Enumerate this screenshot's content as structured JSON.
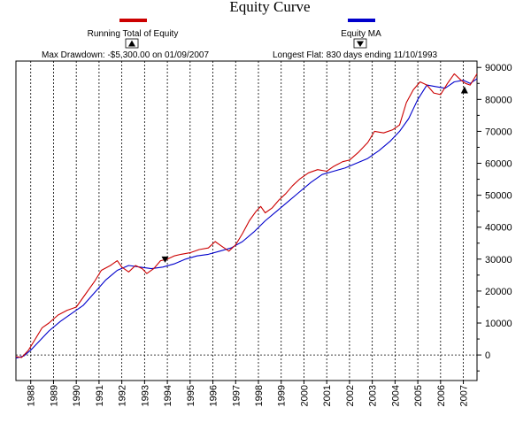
{
  "chart_data": {
    "type": "line",
    "title": "Equity Curve",
    "legend": [
      {
        "name": "Running Total of Equity",
        "color": "#cc0000"
      },
      {
        "name": "Equity MA",
        "color": "#0000cc"
      }
    ],
    "annotations": {
      "max_drawdown": "Max Drawdown: -$5,300.00 on 01/09/2007",
      "longest_flat": "Longest Flat: 830 days ending 11/10/1993"
    },
    "y_ticks": [
      "90000",
      "80000",
      "70000",
      "60000",
      "50000",
      "40000",
      "30000",
      "20000",
      "10000",
      "0"
    ],
    "x_ticks": [
      "1988",
      "1989",
      "1990",
      "1991",
      "1992",
      "1993",
      "1994",
      "1995",
      "1996",
      "1997",
      "1998",
      "1999",
      "2000",
      "2001",
      "2002",
      "2003",
      "2004",
      "2005",
      "2006",
      "2007"
    ],
    "xlim": [
      1987.35,
      2007.6
    ],
    "ylim": [
      -8000,
      92000
    ],
    "markers": [
      {
        "kind": "down-triangle",
        "x": 1993.9,
        "y": 30000
      },
      {
        "kind": "up-triangle",
        "x": 2007.05,
        "y": 83000
      }
    ],
    "series": [
      {
        "name": "Running Total of Equity",
        "color": "#cc0000",
        "x": [
          1987.35,
          1987.6,
          1987.9,
          1988.2,
          1988.5,
          1988.8,
          1989.2,
          1989.6,
          1990.0,
          1990.4,
          1990.8,
          1991.1,
          1991.5,
          1991.8,
          1992.0,
          1992.3,
          1992.6,
          1992.9,
          1993.1,
          1993.4,
          1993.7,
          1994.0,
          1994.3,
          1994.6,
          1995.0,
          1995.4,
          1995.8,
          1996.1,
          1996.4,
          1996.7,
          1997.0,
          1997.3,
          1997.6,
          1997.9,
          1998.1,
          1998.3,
          1998.6,
          1998.9,
          1999.2,
          1999.5,
          1999.8,
          2000.2,
          2000.6,
          2001.0,
          2001.3,
          2001.7,
          2002.0,
          2002.4,
          2002.8,
          2003.1,
          2003.5,
          2003.9,
          2004.2,
          2004.5,
          2004.8,
          2005.1,
          2005.4,
          2005.7,
          2006.0,
          2006.3,
          2006.6,
          2006.9,
          2007.1,
          2007.3,
          2007.6
        ],
        "y": [
          -500,
          -800,
          1500,
          5000,
          8500,
          10000,
          12500,
          14000,
          15000,
          19000,
          23000,
          26500,
          28000,
          29500,
          27500,
          26000,
          28000,
          27000,
          25500,
          27000,
          29500,
          30000,
          31000,
          31500,
          32000,
          33000,
          33500,
          35500,
          34000,
          32500,
          34500,
          38000,
          42000,
          45000,
          46500,
          44500,
          46000,
          48500,
          50500,
          53000,
          55000,
          57000,
          58000,
          57500,
          59000,
          60500,
          61000,
          63500,
          66500,
          70000,
          69500,
          70500,
          72000,
          79000,
          83000,
          85500,
          84500,
          82000,
          81500,
          85000,
          88000,
          86000,
          85000,
          84500,
          88000
        ]
      },
      {
        "name": "Equity MA",
        "color": "#0000cc",
        "x": [
          1987.35,
          1987.7,
          1988.0,
          1988.4,
          1988.8,
          1989.3,
          1989.8,
          1990.3,
          1990.8,
          1991.3,
          1991.8,
          1992.3,
          1992.8,
          1993.3,
          1993.8,
          1994.3,
          1994.8,
          1995.3,
          1995.8,
          1996.3,
          1996.8,
          1997.3,
          1997.8,
          1998.3,
          1998.8,
          1999.3,
          1999.8,
          2000.3,
          2000.8,
          2001.3,
          2001.8,
          2002.3,
          2002.8,
          2003.3,
          2003.8,
          2004.2,
          2004.6,
          2005.0,
          2005.4,
          2005.8,
          2006.2,
          2006.6,
          2007.0,
          2007.3,
          2007.6
        ],
        "y": [
          -1000,
          -300,
          1500,
          4500,
          7500,
          10500,
          13000,
          15500,
          19500,
          23500,
          26500,
          28000,
          27500,
          27000,
          27500,
          28500,
          30000,
          31000,
          31500,
          32500,
          33500,
          35500,
          38500,
          42000,
          45000,
          48000,
          51000,
          54000,
          56500,
          57500,
          58500,
          60000,
          61500,
          64000,
          67000,
          70000,
          74000,
          80000,
          84500,
          84000,
          83500,
          85500,
          86000,
          85000,
          86500
        ]
      }
    ]
  }
}
